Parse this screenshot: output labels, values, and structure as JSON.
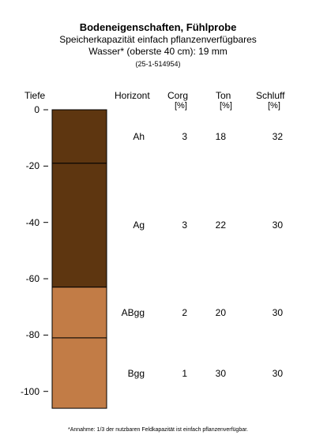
{
  "chart_data": {
    "type": "table",
    "title": "Bodeneigenschaften, Fühlprobe",
    "subtitle_lines": [
      "Speicherkapazität einfach pflanzenverfügbares",
      "Wasser* (oberste 40 cm): 19 mm",
      "(25-1-514954)"
    ],
    "depth_axis_label": "Tiefe",
    "depth_ticks": [
      0,
      -20,
      -40,
      -60,
      -80,
      -100
    ],
    "ylim": [
      -106,
      0
    ],
    "columns": {
      "horizont": "Horizont",
      "corg": "Corg",
      "corg_unit": "[%]",
      "ton": "Ton",
      "ton_unit": "[%]",
      "schluff": "Schluff",
      "schluff_unit": "[%]"
    },
    "layers": [
      {
        "horizont": "Ah",
        "top": 0,
        "bottom": -19,
        "corg": 3,
        "ton": 18,
        "schluff": 32,
        "color": "#5e3610"
      },
      {
        "horizont": "Ag",
        "top": -19,
        "bottom": -63,
        "corg": 3,
        "ton": 22,
        "schluff": 30,
        "color": "#5e3610"
      },
      {
        "horizont": "ABgg",
        "top": -63,
        "bottom": -81,
        "corg": 2,
        "ton": 20,
        "schluff": 30,
        "color": "#c27c46"
      },
      {
        "horizont": "Bgg",
        "top": -81,
        "bottom": -106,
        "corg": 1,
        "ton": 30,
        "schluff": 30,
        "color": "#c27c46"
      }
    ],
    "footnote": "*Annahme: 1/3 der nutzbaren Feldkapazität ist einfach pflanzenverfügbar."
  }
}
